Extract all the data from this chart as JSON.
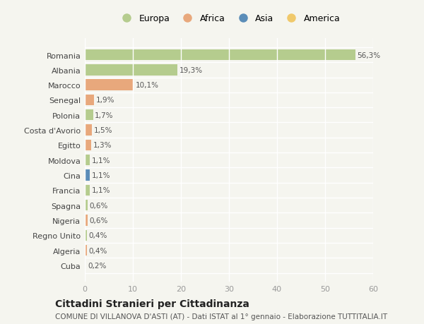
{
  "countries": [
    "Romania",
    "Albania",
    "Marocco",
    "Senegal",
    "Polonia",
    "Costa d'Avorio",
    "Egitto",
    "Moldova",
    "Cina",
    "Francia",
    "Spagna",
    "Nigeria",
    "Regno Unito",
    "Algeria",
    "Cuba"
  ],
  "values": [
    56.3,
    19.3,
    10.1,
    1.9,
    1.7,
    1.5,
    1.3,
    1.1,
    1.1,
    1.1,
    0.6,
    0.6,
    0.4,
    0.4,
    0.2
  ],
  "labels": [
    "56,3%",
    "19,3%",
    "10,1%",
    "1,9%",
    "1,7%",
    "1,5%",
    "1,3%",
    "1,1%",
    "1,1%",
    "1,1%",
    "0,6%",
    "0,6%",
    "0,4%",
    "0,4%",
    "0,2%"
  ],
  "continents": [
    "Europa",
    "Europa",
    "Africa",
    "Africa",
    "Europa",
    "Africa",
    "Africa",
    "Europa",
    "Asia",
    "Europa",
    "Europa",
    "Africa",
    "Europa",
    "Africa",
    "America"
  ],
  "continent_colors": {
    "Europa": "#b5cc8e",
    "Africa": "#e8a87c",
    "Asia": "#5b8db8",
    "America": "#f0c96b"
  },
  "legend_order": [
    "Europa",
    "Africa",
    "Asia",
    "America"
  ],
  "title": "Cittadini Stranieri per Cittadinanza",
  "subtitle": "COMUNE DI VILLANOVA D'ASTI (AT) - Dati ISTAT al 1° gennaio - Elaborazione TUTTITALIA.IT",
  "xlim": [
    0,
    60
  ],
  "xticks": [
    0,
    10,
    20,
    30,
    40,
    50,
    60
  ],
  "background_color": "#f5f5ef",
  "grid_color": "#ffffff",
  "title_fontsize": 10,
  "subtitle_fontsize": 7.5,
  "label_fontsize": 7.5,
  "tick_fontsize": 8,
  "legend_fontsize": 9
}
